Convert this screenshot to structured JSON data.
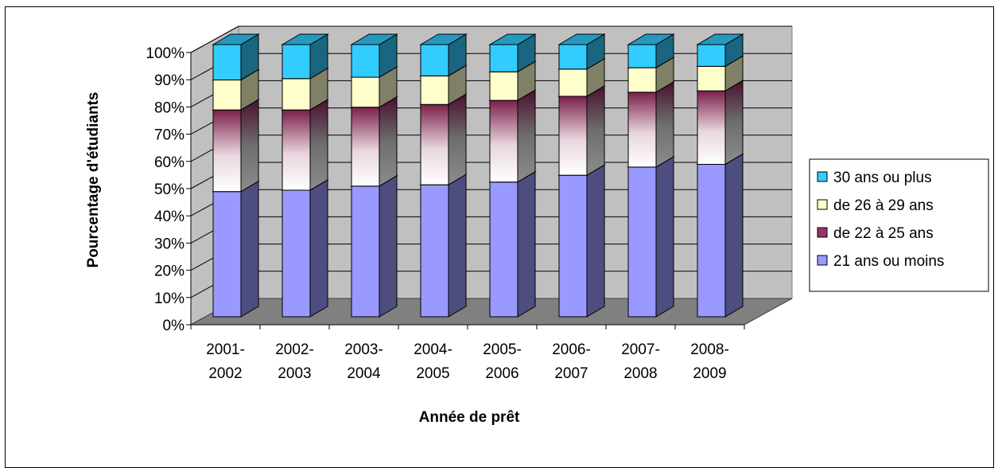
{
  "chart_data": {
    "type": "bar",
    "stacked": true,
    "percent_stacked": true,
    "three_d": true,
    "categories": [
      [
        "2001-",
        "2002"
      ],
      [
        "2002-",
        "2003"
      ],
      [
        "2003-",
        "2004"
      ],
      [
        "2004-",
        "2005"
      ],
      [
        "2005-",
        "2006"
      ],
      [
        "2006-",
        "2007"
      ],
      [
        "2007-",
        "2008"
      ],
      [
        "2008-",
        "2009"
      ]
    ],
    "series": [
      {
        "name": "21 ans ou moins",
        "color": "#9999ff",
        "values": [
          46,
          46.5,
          48,
          48.5,
          49.5,
          52,
          55,
          56
        ]
      },
      {
        "name": "de 22 à 25 ans",
        "color": "#993366",
        "values": [
          30,
          29.5,
          29,
          29.5,
          30,
          29,
          27.5,
          27
        ]
      },
      {
        "name": "de 26 à 29 ans",
        "color": "#ffffcc",
        "values": [
          11,
          11.5,
          11,
          10.5,
          10.5,
          10,
          9,
          9
        ]
      },
      {
        "name": "30 ans ou plus",
        "color": "#33ccff",
        "values": [
          13,
          12.5,
          12,
          11.5,
          10,
          9,
          8.5,
          8
        ]
      }
    ],
    "y_ticks": [
      "0%",
      "10%",
      "20%",
      "30%",
      "40%",
      "50%",
      "60%",
      "70%",
      "80%",
      "90%",
      "100%"
    ],
    "ylim": [
      0,
      100
    ],
    "xlabel": "Année de prêt",
    "ylabel": "Pourcentage d'étudiants",
    "grid": true,
    "legend_position": "right"
  }
}
